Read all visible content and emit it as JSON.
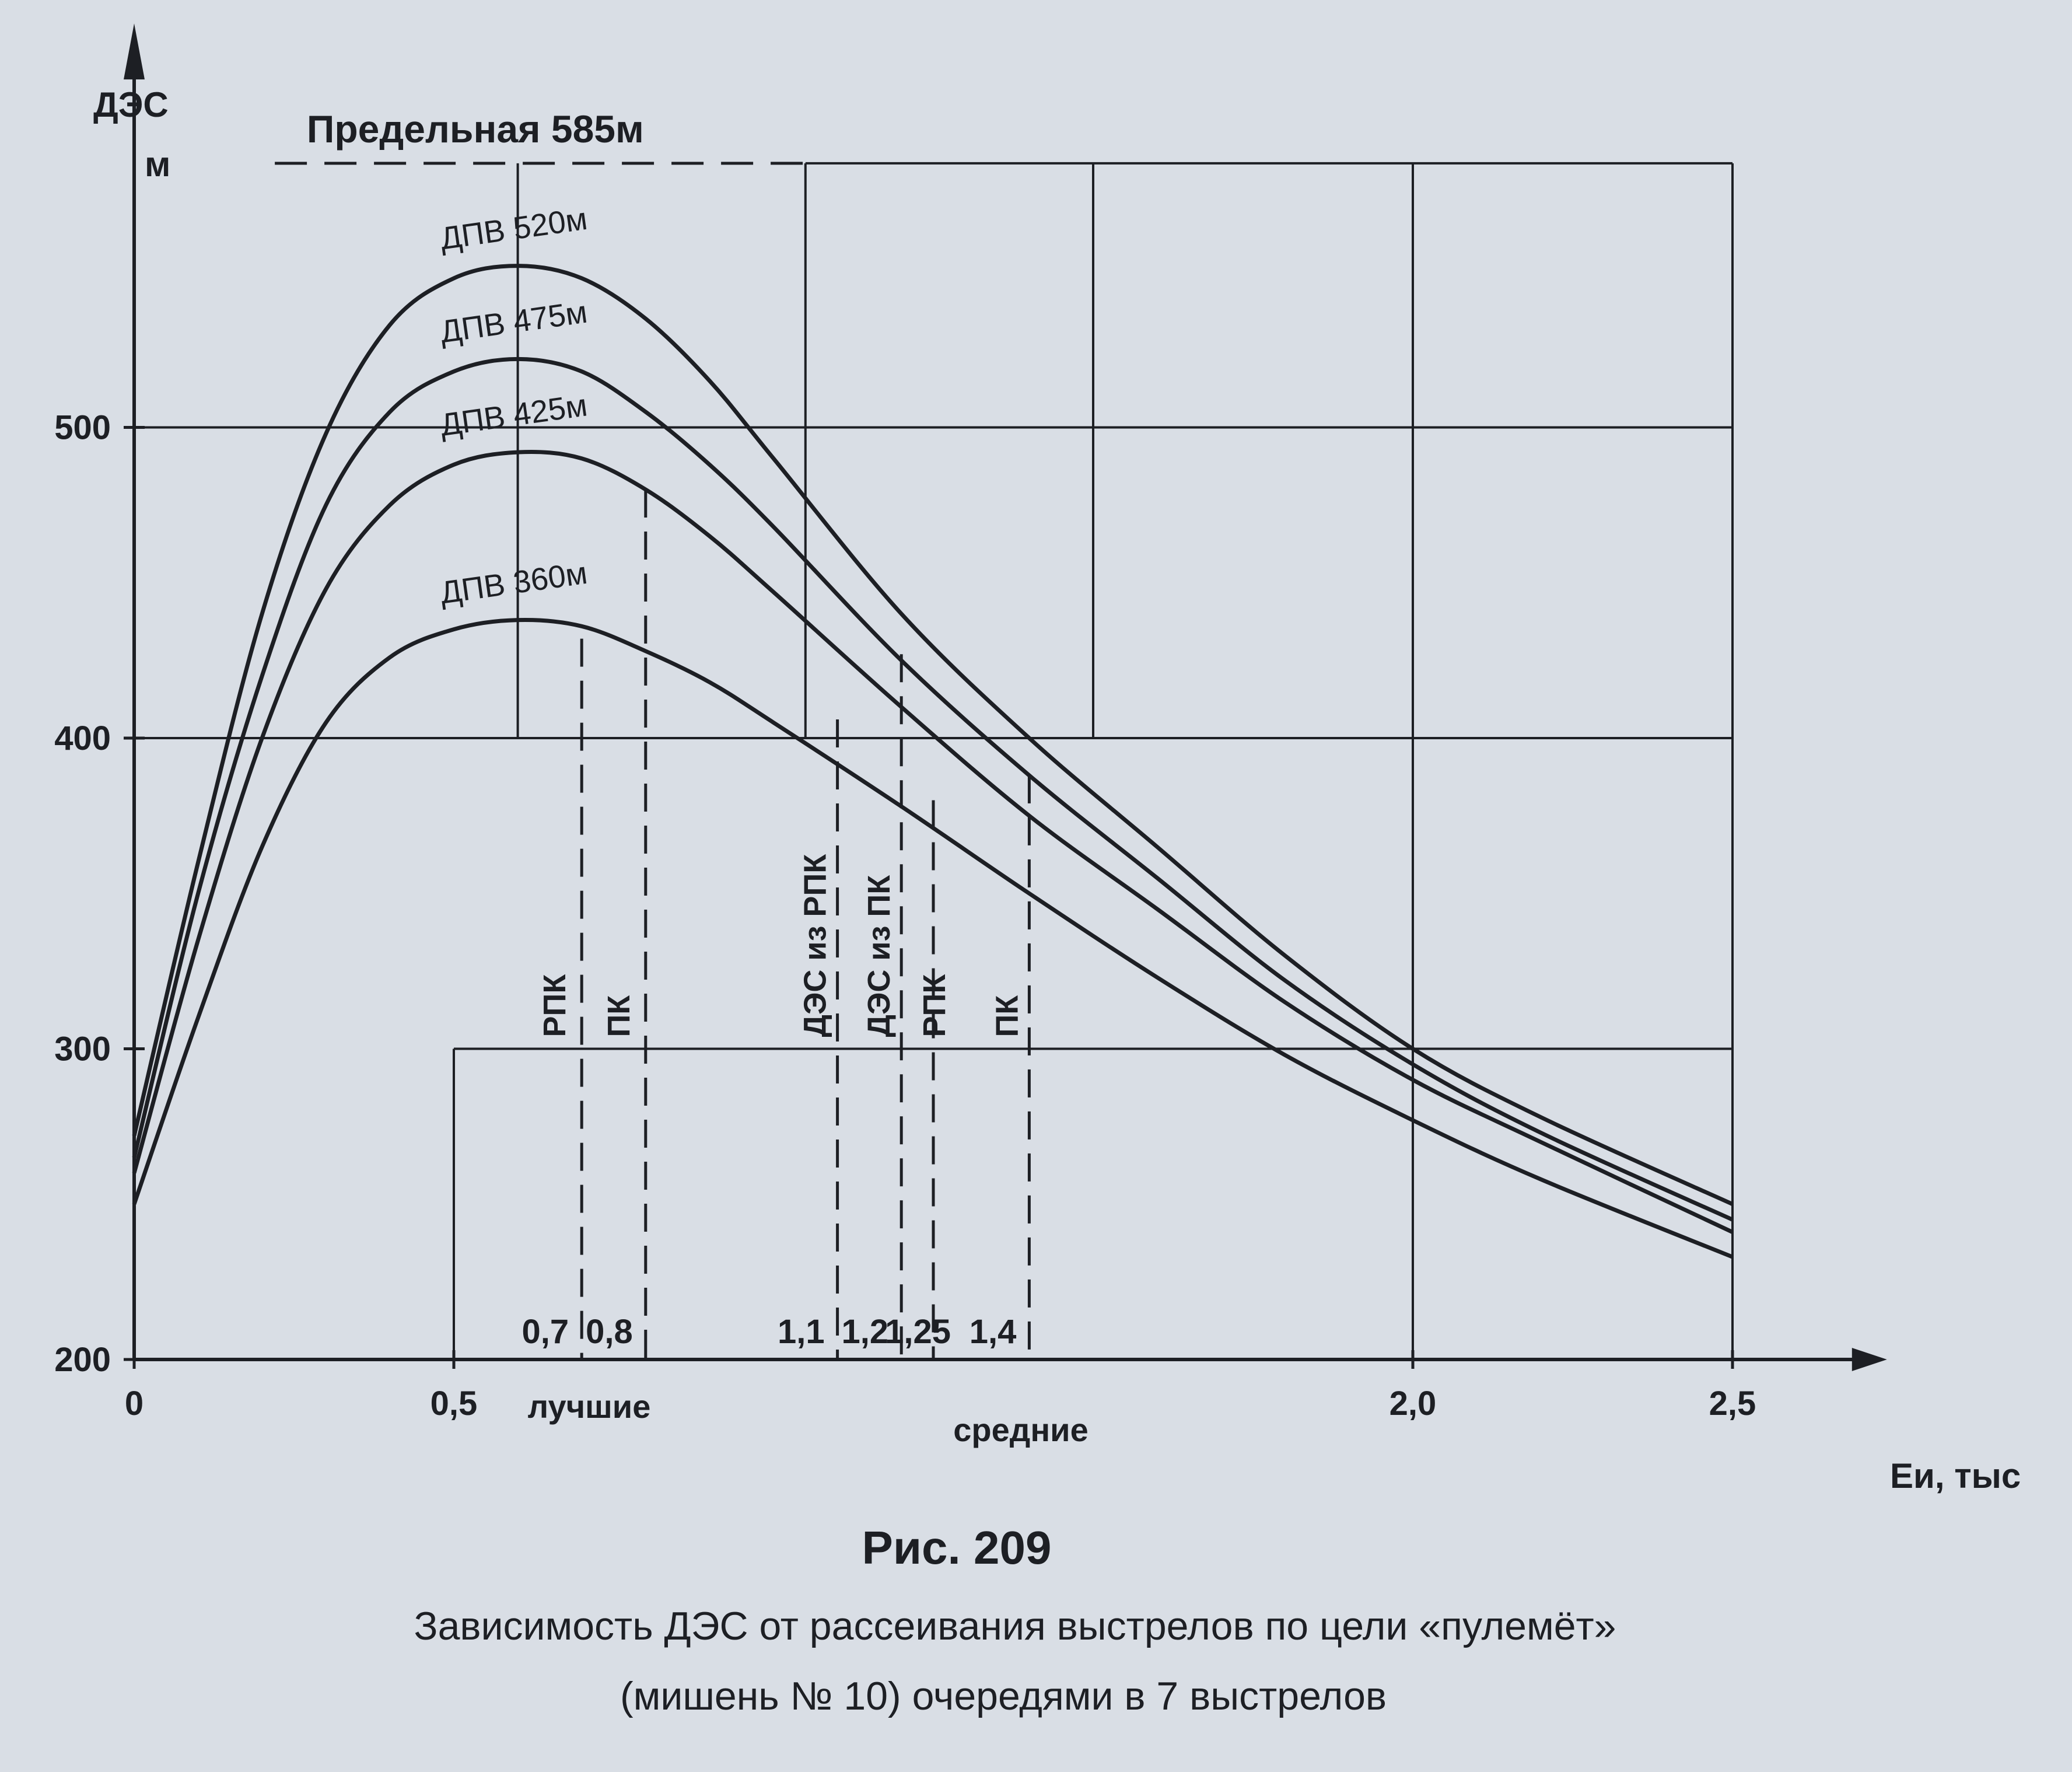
{
  "chart_data": {
    "type": "line",
    "ylabel": "ДЭС",
    "yunit": "м",
    "xlabel": "Eи, тыс",
    "xlim": [
      0,
      2.5
    ],
    "ylim": [
      200,
      600
    ],
    "x_ticks": [
      "0",
      "0,5",
      "2,0",
      "2,5"
    ],
    "y_ticks": [
      "200",
      "300",
      "400",
      "500"
    ],
    "limit_line": {
      "label": "Предельная 585м",
      "y": 585
    },
    "series": [
      {
        "name": "ДПВ 520м",
        "x": [
          0,
          0.1,
          0.2,
          0.3,
          0.4,
          0.5,
          0.6,
          0.7,
          0.8,
          0.9,
          1.0,
          1.2,
          1.4,
          1.6,
          1.8,
          2.0,
          2.2,
          2.5
        ],
        "y": [
          272,
          360,
          440,
          498,
          533,
          548,
          552,
          548,
          535,
          515,
          490,
          440,
          400,
          365,
          330,
          300,
          278,
          250
        ]
      },
      {
        "name": "ДПВ 475м",
        "x": [
          0,
          0.1,
          0.2,
          0.3,
          0.4,
          0.5,
          0.6,
          0.7,
          0.8,
          0.9,
          1.0,
          1.2,
          1.4,
          1.6,
          1.8,
          2.0,
          2.2,
          2.5
        ],
        "y": [
          265,
          350,
          420,
          475,
          505,
          518,
          522,
          518,
          505,
          488,
          468,
          425,
          388,
          355,
          322,
          295,
          273,
          245
        ]
      },
      {
        "name": "ДПВ 425м",
        "x": [
          0,
          0.1,
          0.2,
          0.3,
          0.4,
          0.5,
          0.6,
          0.7,
          0.8,
          0.9,
          1.0,
          1.2,
          1.4,
          1.6,
          1.8,
          2.0,
          2.2,
          2.5
        ],
        "y": [
          260,
          335,
          400,
          448,
          475,
          488,
          492,
          490,
          480,
          465,
          447,
          410,
          375,
          345,
          315,
          290,
          270,
          241
        ]
      },
      {
        "name": "ДПВ 360м",
        "x": [
          0,
          0.1,
          0.2,
          0.3,
          0.4,
          0.5,
          0.6,
          0.7,
          0.8,
          0.9,
          1.0,
          1.2,
          1.4,
          1.6,
          1.8,
          2.0,
          2.2,
          2.5
        ],
        "y": [
          250,
          310,
          365,
          405,
          426,
          435,
          438,
          436,
          428,
          418,
          405,
          378,
          350,
          323,
          298,
          277,
          258,
          233
        ]
      }
    ],
    "markers": [
      {
        "x": 0.7,
        "tick": "0,7",
        "label": "РПК",
        "top": 432
      },
      {
        "x": 0.8,
        "tick": "0,8",
        "label": "ПК",
        "top": 480
      },
      {
        "x": 1.1,
        "tick": "1,1",
        "label": "ДЭС из РПК",
        "top": 406
      },
      {
        "x": 1.2,
        "tick": "1,2",
        "label": "ДЭС из ПК",
        "top": 427
      },
      {
        "x": 1.25,
        "tick": "1,25",
        "label": "РПК",
        "top": 380
      },
      {
        "x": 1.4,
        "tick": "1,4",
        "label": "ПК",
        "top": 388
      }
    ],
    "groups": [
      "лучшие",
      "средние"
    ],
    "grid": "partial"
  },
  "figure": {
    "number": "Рис.  209",
    "caption_lines": [
      "Зависимость ДЭС от рассеивания выстрелов по цели «пулемёт»",
      "(мишень № 10) очередями в 7 выстрелов"
    ]
  },
  "colors": {
    "ink": "#1d1f24",
    "paper": "#d9dee5"
  }
}
